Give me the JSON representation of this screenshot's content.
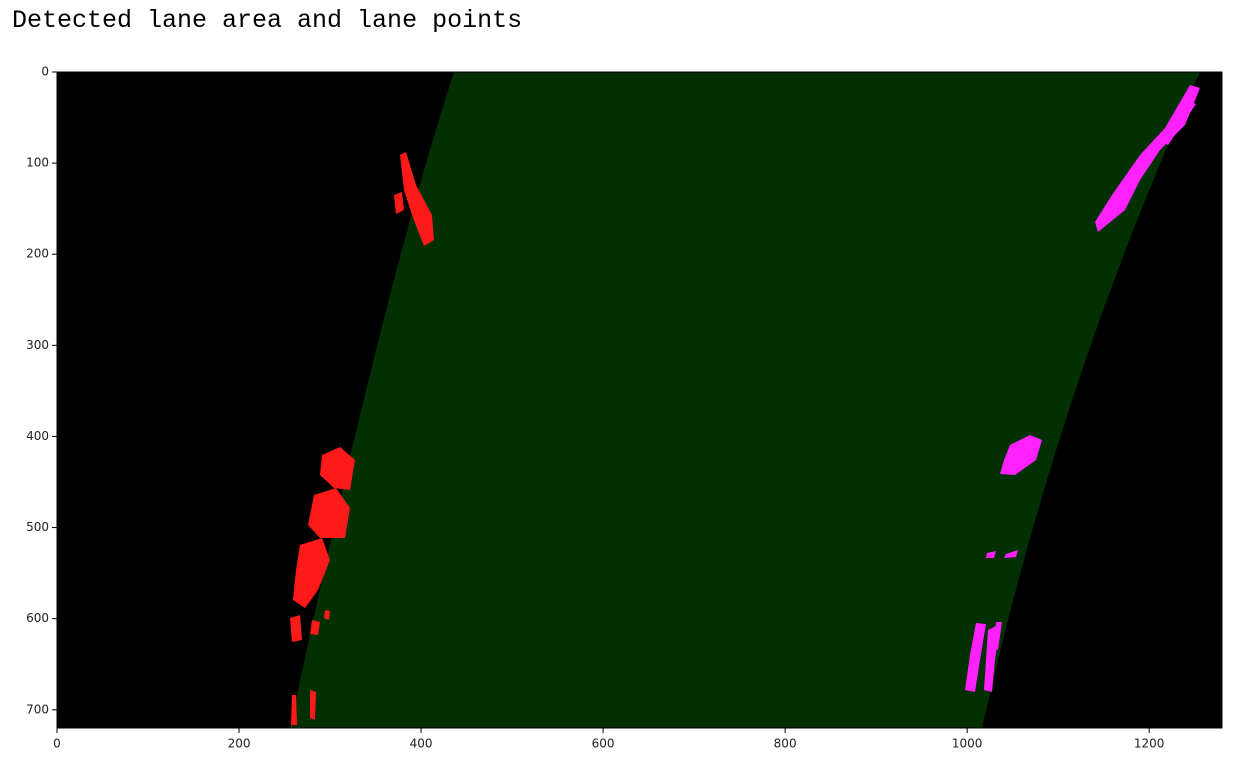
{
  "chart_data": {
    "type": "image",
    "title": "Detected lane area and lane points",
    "xlim": [
      0,
      1280
    ],
    "ylim": [
      720,
      0
    ],
    "xticks": [
      0,
      200,
      400,
      600,
      800,
      1000,
      1200
    ],
    "yticks": [
      0,
      100,
      200,
      300,
      400,
      500,
      600,
      700
    ]
  }
}
